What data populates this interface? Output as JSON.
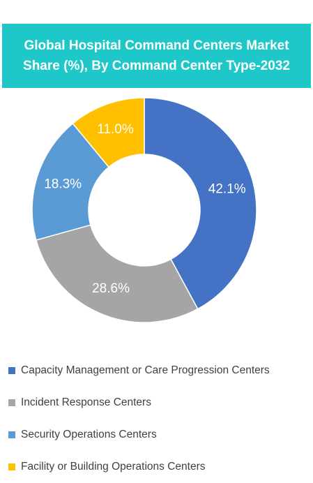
{
  "chart_data": {
    "type": "pie",
    "title": "Global Hospital Command Centers Market Share (%), By Command Center Type-2032",
    "donut": true,
    "legend_position": "bottom",
    "slices": [
      {
        "label": "Capacity Management or Care Progression Centers",
        "value": 42.1,
        "display": "42.1%",
        "color": "#4472c4"
      },
      {
        "label": "Incident Response Centers",
        "value": 28.6,
        "display": "28.6%",
        "color": "#a5a5a5"
      },
      {
        "label": "Security Operations Centers",
        "value": 18.3,
        "display": "18.3%",
        "color": "#5b9bd5"
      },
      {
        "label": "Facility or Building Operations Centers",
        "value": 11.0,
        "display": "11.0%",
        "color": "#ffc000"
      }
    ]
  }
}
